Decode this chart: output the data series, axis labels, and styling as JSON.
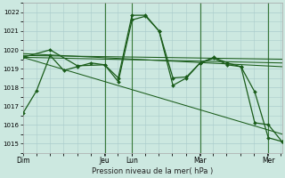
{
  "background_color": "#cce8e0",
  "grid_color": "#aacccc",
  "line_color": "#1a5c1a",
  "marker_color": "#1a5c1a",
  "xlabel": "Pression niveau de la mer( hPa )",
  "ylim": [
    1014.5,
    1022.5
  ],
  "yticks": [
    1015,
    1016,
    1017,
    1018,
    1019,
    1020,
    1021,
    1022
  ],
  "day_labels": [
    "Dim",
    "Jeu",
    "Lun",
    "Mar",
    "Mer"
  ],
  "day_positions": [
    0,
    0.5,
    0.667,
    1.083,
    1.5
  ],
  "xlim": [
    0,
    1.583
  ],
  "series1_main": {
    "x": [
      0.0,
      0.083,
      0.167,
      0.25,
      0.333,
      0.417,
      0.5,
      0.583,
      0.667,
      0.75,
      0.833,
      0.917,
      1.0,
      1.083,
      1.167,
      1.25,
      1.333,
      1.417,
      1.5,
      1.583
    ],
    "y": [
      1016.6,
      1017.8,
      1019.7,
      1018.9,
      1019.1,
      1019.3,
      1019.2,
      1018.3,
      1021.6,
      1021.8,
      1021.0,
      1018.1,
      1018.5,
      1019.3,
      1019.6,
      1019.3,
      1019.1,
      1016.1,
      1016.0,
      1015.1
    ]
  },
  "series2_flat1": {
    "x": [
      0.0,
      1.583
    ],
    "y": [
      1019.7,
      1019.5
    ]
  },
  "series3_flat2": {
    "x": [
      0.0,
      1.583
    ],
    "y": [
      1019.6,
      1019.3
    ]
  },
  "series4_flat3": {
    "x": [
      0.0,
      1.583
    ],
    "y": [
      1019.8,
      1019.1
    ]
  },
  "series5_decline": {
    "x": [
      0.0,
      1.583
    ],
    "y": [
      1019.6,
      1015.5
    ]
  },
  "series6_marked": {
    "x": [
      0.0,
      0.167,
      0.333,
      0.5,
      0.583,
      0.667,
      0.75,
      0.833,
      0.917,
      1.0,
      1.083,
      1.167,
      1.25,
      1.333,
      1.417,
      1.5,
      1.583
    ],
    "y": [
      1019.6,
      1020.0,
      1019.15,
      1019.2,
      1018.5,
      1021.85,
      1021.85,
      1021.0,
      1018.5,
      1018.55,
      1019.3,
      1019.55,
      1019.2,
      1019.1,
      1017.75,
      1015.3,
      1015.1
    ]
  }
}
